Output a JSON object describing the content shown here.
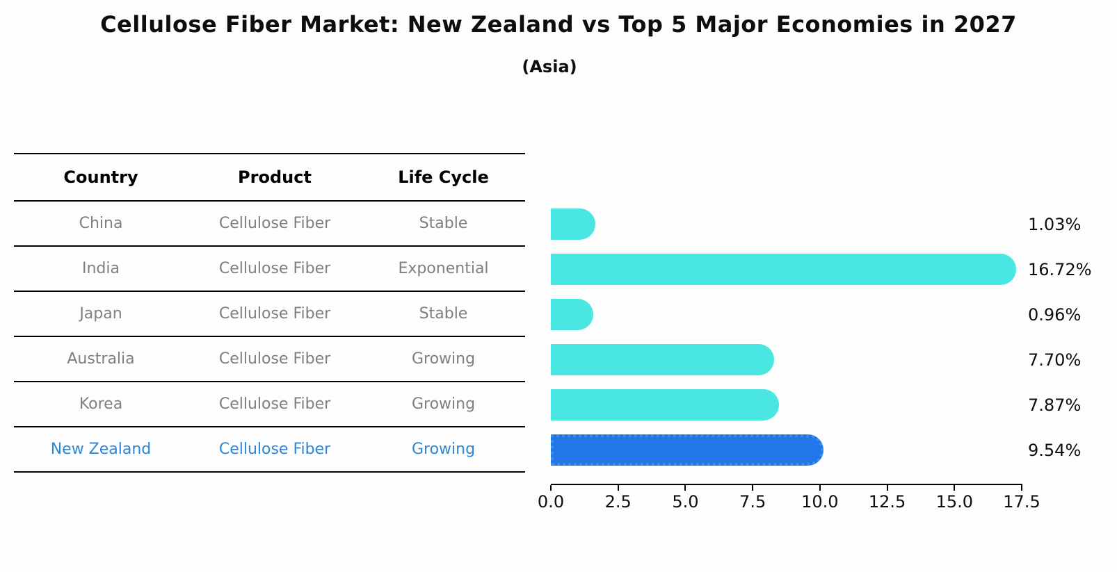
{
  "title": "Cellulose Fiber Market: New Zealand vs Top 5 Major Economies in 2027",
  "subtitle": "(Asia)",
  "table": {
    "headers": [
      "Country",
      "Product",
      "Life Cycle"
    ],
    "rows": [
      {
        "country": "China",
        "product": "Cellulose Fiber",
        "life_cycle": "Stable",
        "highlight": false
      },
      {
        "country": "India",
        "product": "Cellulose Fiber",
        "life_cycle": "Exponential",
        "highlight": false
      },
      {
        "country": "Japan",
        "product": "Cellulose Fiber",
        "life_cycle": "Stable",
        "highlight": false
      },
      {
        "country": "Australia",
        "product": "Cellulose Fiber",
        "life_cycle": "Growing",
        "highlight": false
      },
      {
        "country": "Korea",
        "product": "Cellulose Fiber",
        "life_cycle": "Growing",
        "highlight": false
      },
      {
        "country": "New Zealand",
        "product": "Cellulose Fiber",
        "life_cycle": "Growing",
        "highlight": true
      }
    ]
  },
  "chart_data": {
    "type": "bar",
    "orientation": "horizontal",
    "title": "Cellulose Fiber Market: New Zealand vs Top 5 Major Economies in 2027",
    "subtitle": "(Asia)",
    "categories": [
      "China",
      "India",
      "Japan",
      "Australia",
      "Korea",
      "New Zealand"
    ],
    "values": [
      1.03,
      16.72,
      0.96,
      7.7,
      7.87,
      9.54
    ],
    "value_labels": [
      "1.03%",
      "16.72%",
      "0.96%",
      "7.70%",
      "7.87%",
      "9.54%"
    ],
    "xlabel": "",
    "ylabel": "",
    "xlim": [
      0,
      17.5
    ],
    "x_ticks": [
      0.0,
      2.5,
      5.0,
      7.5,
      10.0,
      12.5,
      15.0,
      17.5
    ],
    "x_tick_labels": [
      "0.0",
      "2.5",
      "5.0",
      "7.5",
      "10.0",
      "12.5",
      "15.0",
      "17.5"
    ],
    "grid": false,
    "legend": false,
    "highlight_index": 5
  },
  "colors": {
    "bar_cyan": "#4ae6e2",
    "bar_blue": "#2176e8",
    "highlight_text": "#2e86d5",
    "muted_text": "#7f7f7f",
    "axis_line": "#000000",
    "title_text": "#0d0d0d"
  }
}
